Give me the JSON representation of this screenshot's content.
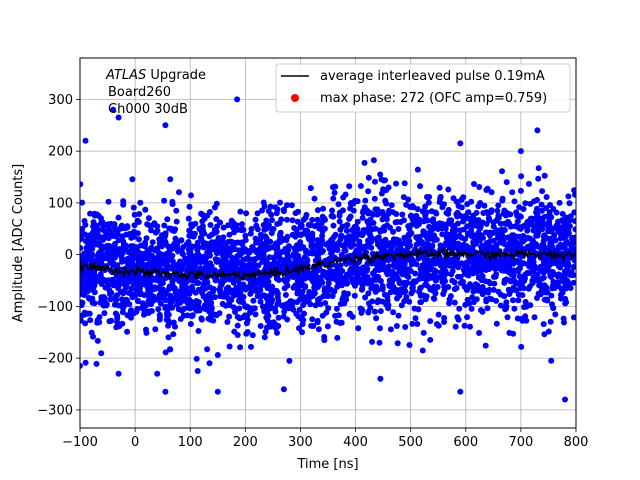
{
  "chart_data": {
    "type": "scatter",
    "title": "",
    "xlabel": "Time [ns]",
    "ylabel": "Amplitude [ADC Counts]",
    "xlim": [
      -100,
      800
    ],
    "ylim": [
      -335,
      380
    ],
    "xticks": [
      -100,
      0,
      100,
      200,
      300,
      400,
      500,
      600,
      700,
      800
    ],
    "yticks": [
      -300,
      -200,
      -100,
      0,
      100,
      200,
      300
    ],
    "grid": true,
    "legend_position": "top-right",
    "annotation": {
      "line1_italic": "ATLAS",
      "line1_rest": " Upgrade",
      "line2": "Board260",
      "line3": "Ch000 30dB"
    },
    "series": [
      {
        "name": "average interleaved pulse 0.19mA",
        "kind": "line",
        "color": "#000000",
        "x": [
          -100,
          -50,
          0,
          50,
          100,
          150,
          200,
          250,
          300,
          350,
          400,
          450,
          500,
          550,
          600,
          650,
          700,
          750,
          800
        ],
        "y": [
          -22,
          -28,
          -33,
          -37,
          -39,
          -40,
          -39,
          -36,
          -28,
          -16,
          -6,
          -2,
          0,
          1,
          1,
          0,
          1,
          0,
          0
        ]
      },
      {
        "name": "",
        "kind": "scatter",
        "color": "#0000ff",
        "description_noise_sigma": 58,
        "outliers": [
          {
            "x": -40,
            "y": 280
          },
          {
            "x": -30,
            "y": 265
          },
          {
            "x": 55,
            "y": 250
          },
          {
            "x": 185,
            "y": 300
          },
          {
            "x": -90,
            "y": 220
          },
          {
            "x": 730,
            "y": 240
          },
          {
            "x": -100,
            "y": -215
          },
          {
            "x": -30,
            "y": -230
          },
          {
            "x": 55,
            "y": -265
          },
          {
            "x": 150,
            "y": -265
          },
          {
            "x": 270,
            "y": -260
          },
          {
            "x": 445,
            "y": -240
          },
          {
            "x": 590,
            "y": -265
          },
          {
            "x": 780,
            "y": -280
          },
          {
            "x": 40,
            "y": -230
          },
          {
            "x": 135,
            "y": -210
          },
          {
            "x": 755,
            "y": -205
          },
          {
            "x": 700,
            "y": 200
          },
          {
            "x": 590,
            "y": 215
          }
        ]
      },
      {
        "name": "max phase: 272 (OFC amp=0.759)",
        "kind": "marker",
        "color": "#ff0000"
      }
    ]
  }
}
